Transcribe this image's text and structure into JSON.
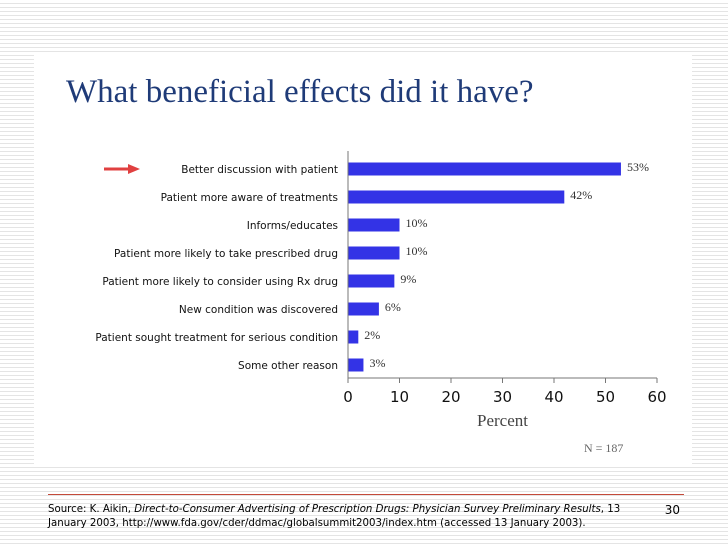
{
  "slide": {
    "title": "What beneficial effects did it have?",
    "page_number": "30",
    "source": {
      "prefix": "Source: K. Aikin, ",
      "publication": "Direct-to-Consumer Advertising of Prescription Drugs: Physician Survey Preliminary Results",
      "suffix": ", 13 January 2003, http://www.fda.gov/cder/ddmac/globalsummit2003/index.htm (accessed 13 January 2003)."
    }
  },
  "colors": {
    "bar": "#3333e6",
    "title": "#1f3b78",
    "arrow": "#e04040",
    "axis": "#777777"
  },
  "chart_data": {
    "type": "bar",
    "orientation": "horizontal",
    "title": "What beneficial effects did it have?",
    "categories": [
      "Better discussion with patient",
      "Patient more aware of treatments",
      "Informs/educates",
      "Patient more likely to take prescribed drug",
      "Patient more likely to consider using Rx drug",
      "New condition was discovered",
      "Patient sought treatment for serious condition",
      "Some other reason"
    ],
    "values": [
      53,
      42,
      10,
      10,
      9,
      6,
      2,
      3
    ],
    "value_labels": [
      "53%",
      "42%",
      "10%",
      "10%",
      "9%",
      "6%",
      "2%",
      "3%"
    ],
    "xlabel": "Percent",
    "xlim": [
      0,
      60
    ],
    "xticks": [
      0,
      10,
      20,
      30,
      40,
      50,
      60
    ],
    "annotation": "N = 187",
    "highlighted_category": "Better discussion with patient",
    "grid": false
  }
}
